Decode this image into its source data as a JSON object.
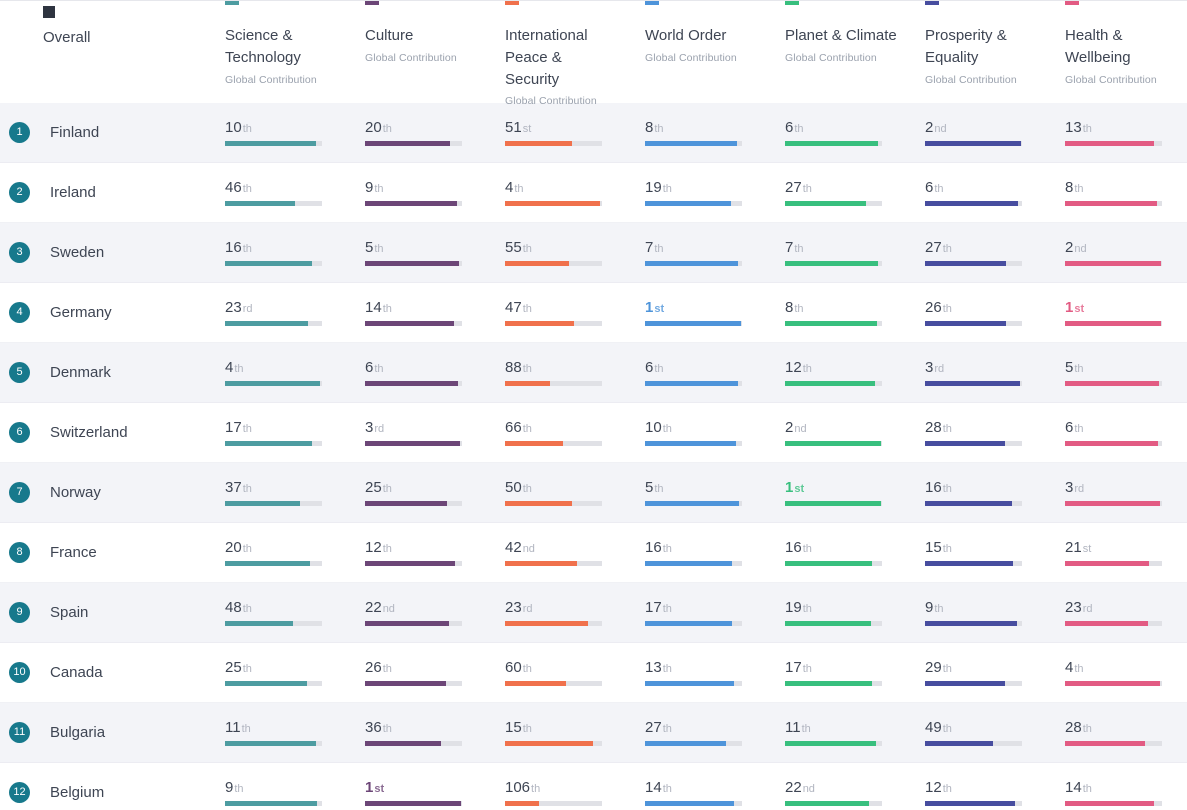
{
  "header": {
    "overall_label": "Overall",
    "sublabel": "Global Contribution",
    "columns": [
      {
        "key": "science",
        "label": "Science & Technology",
        "color": "#4d9ca1"
      },
      {
        "key": "culture",
        "label": "Culture",
        "color": "#6c4677"
      },
      {
        "key": "peace",
        "label": "International Peace & Security",
        "color": "#f0714c"
      },
      {
        "key": "world",
        "label": "World Order",
        "color": "#4e94da"
      },
      {
        "key": "planet",
        "label": "Planet & Climate",
        "color": "#38bf7e"
      },
      {
        "key": "prosperity",
        "label": "Prosperity & Equality",
        "color": "#474d9f"
      },
      {
        "key": "health",
        "label": "Health & Wellbeing",
        "color": "#e25b83"
      }
    ]
  },
  "styles": {
    "badge_color": "#17798c",
    "overall_marker_color": "#2e3440"
  },
  "table": {
    "rows": [
      {
        "rank": "1",
        "country": "Finland",
        "values": {
          "science": "10th",
          "culture": "20th",
          "peace": "51st",
          "world": "8th",
          "planet": "6th",
          "prosperity": "2nd",
          "health": "13th"
        }
      },
      {
        "rank": "2",
        "country": "Ireland",
        "values": {
          "science": "46th",
          "culture": "9th",
          "peace": "4th",
          "world": "19th",
          "planet": "27th",
          "prosperity": "6th",
          "health": "8th"
        }
      },
      {
        "rank": "3",
        "country": "Sweden",
        "values": {
          "science": "16th",
          "culture": "5th",
          "peace": "55th",
          "world": "7th",
          "planet": "7th",
          "prosperity": "27th",
          "health": "2nd"
        }
      },
      {
        "rank": "4",
        "country": "Germany",
        "values": {
          "science": "23rd",
          "culture": "14th",
          "peace": "47th",
          "world": "1st",
          "planet": "8th",
          "prosperity": "26th",
          "health": "1st"
        }
      },
      {
        "rank": "5",
        "country": "Denmark",
        "values": {
          "science": "4th",
          "culture": "6th",
          "peace": "88th",
          "world": "6th",
          "planet": "12th",
          "prosperity": "3rd",
          "health": "5th"
        }
      },
      {
        "rank": "6",
        "country": "Switzerland",
        "values": {
          "science": "17th",
          "culture": "3rd",
          "peace": "66th",
          "world": "10th",
          "planet": "2nd",
          "prosperity": "28th",
          "health": "6th"
        }
      },
      {
        "rank": "7",
        "country": "Norway",
        "values": {
          "science": "37th",
          "culture": "25th",
          "peace": "50th",
          "world": "5th",
          "planet": "1st",
          "prosperity": "16th",
          "health": "3rd"
        }
      },
      {
        "rank": "8",
        "country": "France",
        "values": {
          "science": "20th",
          "culture": "12th",
          "peace": "42nd",
          "world": "16th",
          "planet": "16th",
          "prosperity": "15th",
          "health": "21st"
        }
      },
      {
        "rank": "9",
        "country": "Spain",
        "values": {
          "science": "48th",
          "culture": "22nd",
          "peace": "23rd",
          "world": "17th",
          "planet": "19th",
          "prosperity": "9th",
          "health": "23rd"
        }
      },
      {
        "rank": "10",
        "country": "Canada",
        "values": {
          "science": "25th",
          "culture": "26th",
          "peace": "60th",
          "world": "13th",
          "planet": "17th",
          "prosperity": "29th",
          "health": "4th"
        }
      },
      {
        "rank": "11",
        "country": "Bulgaria",
        "values": {
          "science": "11th",
          "culture": "36th",
          "peace": "15th",
          "world": "27th",
          "planet": "11th",
          "prosperity": "49th",
          "health": "28th"
        }
      },
      {
        "rank": "12",
        "country": "Belgium",
        "values": {
          "science": "9th",
          "culture": "1st",
          "peace": "106th",
          "world": "14th",
          "planet": "22nd",
          "prosperity": "12th",
          "health": "14th"
        }
      }
    ]
  }
}
